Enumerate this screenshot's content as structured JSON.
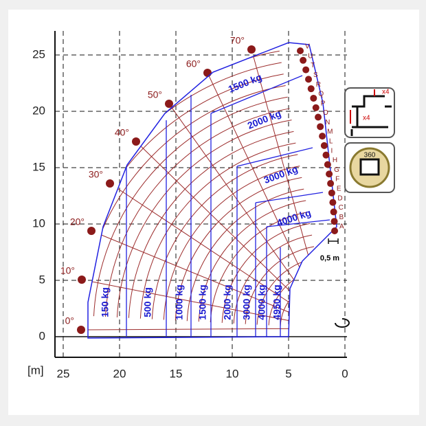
{
  "axes": {
    "unit": "[m]",
    "x_ticks": [
      "25",
      "20",
      "15",
      "10",
      "5",
      "0"
    ],
    "y_ticks": [
      "0",
      "5",
      "10",
      "15",
      "20",
      "25"
    ]
  },
  "angles": [
    "0°",
    "10°",
    "20°",
    "30°",
    "40°",
    "50°",
    "60°",
    "70°"
  ],
  "extensions": [
    "A",
    "B",
    "C",
    "D",
    "E",
    "F",
    "G",
    "H",
    "I",
    "L",
    "M",
    "N",
    "O",
    "P",
    "Q",
    "R",
    "S",
    "T",
    "U",
    "V"
  ],
  "loads_radial": [
    "1500 kg",
    "2000 kg",
    "3000 kg",
    "4000 kg"
  ],
  "loads_vertical": [
    "150 kg",
    "500 kg",
    "1000 kg",
    "1500 kg",
    "2000 kg",
    "3000 kg",
    "4000 kg",
    "4950 kg"
  ],
  "scale_note": "0,5 m",
  "icons": {
    "outriggers_top": "x4",
    "outriggers_side": "x4",
    "rotation": "360"
  }
}
